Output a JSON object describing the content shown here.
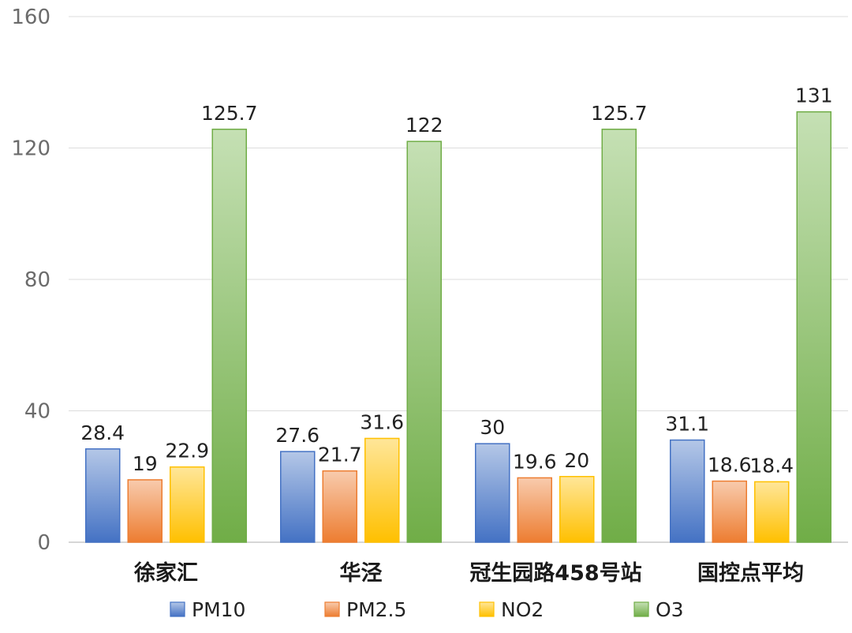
{
  "chart_data": {
    "type": "bar",
    "categories": [
      "徐家汇",
      "华泾",
      "冠生园路458号站",
      "国控点平均"
    ],
    "series": [
      {
        "name": "PM10",
        "values": [
          28.4,
          27.6,
          30,
          31.1
        ],
        "labels": [
          "28.4",
          "27.6",
          "30",
          "31.1"
        ],
        "color": "#4472c4"
      },
      {
        "name": "PM2.5",
        "values": [
          19,
          21.7,
          19.6,
          18.6
        ],
        "labels": [
          "19",
          "21.7",
          "19.6",
          "18.6"
        ],
        "color": "#ed7d31"
      },
      {
        "name": "NO2",
        "values": [
          22.9,
          31.6,
          20,
          18.4
        ],
        "labels": [
          "22.9",
          "31.6",
          "20",
          "18.4"
        ],
        "color": "#ffc000"
      },
      {
        "name": "O3",
        "values": [
          125.7,
          122,
          125.7,
          131
        ],
        "labels": [
          "125.7",
          "122",
          "125.7",
          "131"
        ],
        "color": "#70ad47"
      }
    ],
    "ylim": [
      0,
      160
    ],
    "yticks": [
      "0",
      "40",
      "80",
      "120",
      "160"
    ],
    "grid": true,
    "legend_position": "bottom",
    "title": "",
    "xlabel": "",
    "ylabel": ""
  }
}
